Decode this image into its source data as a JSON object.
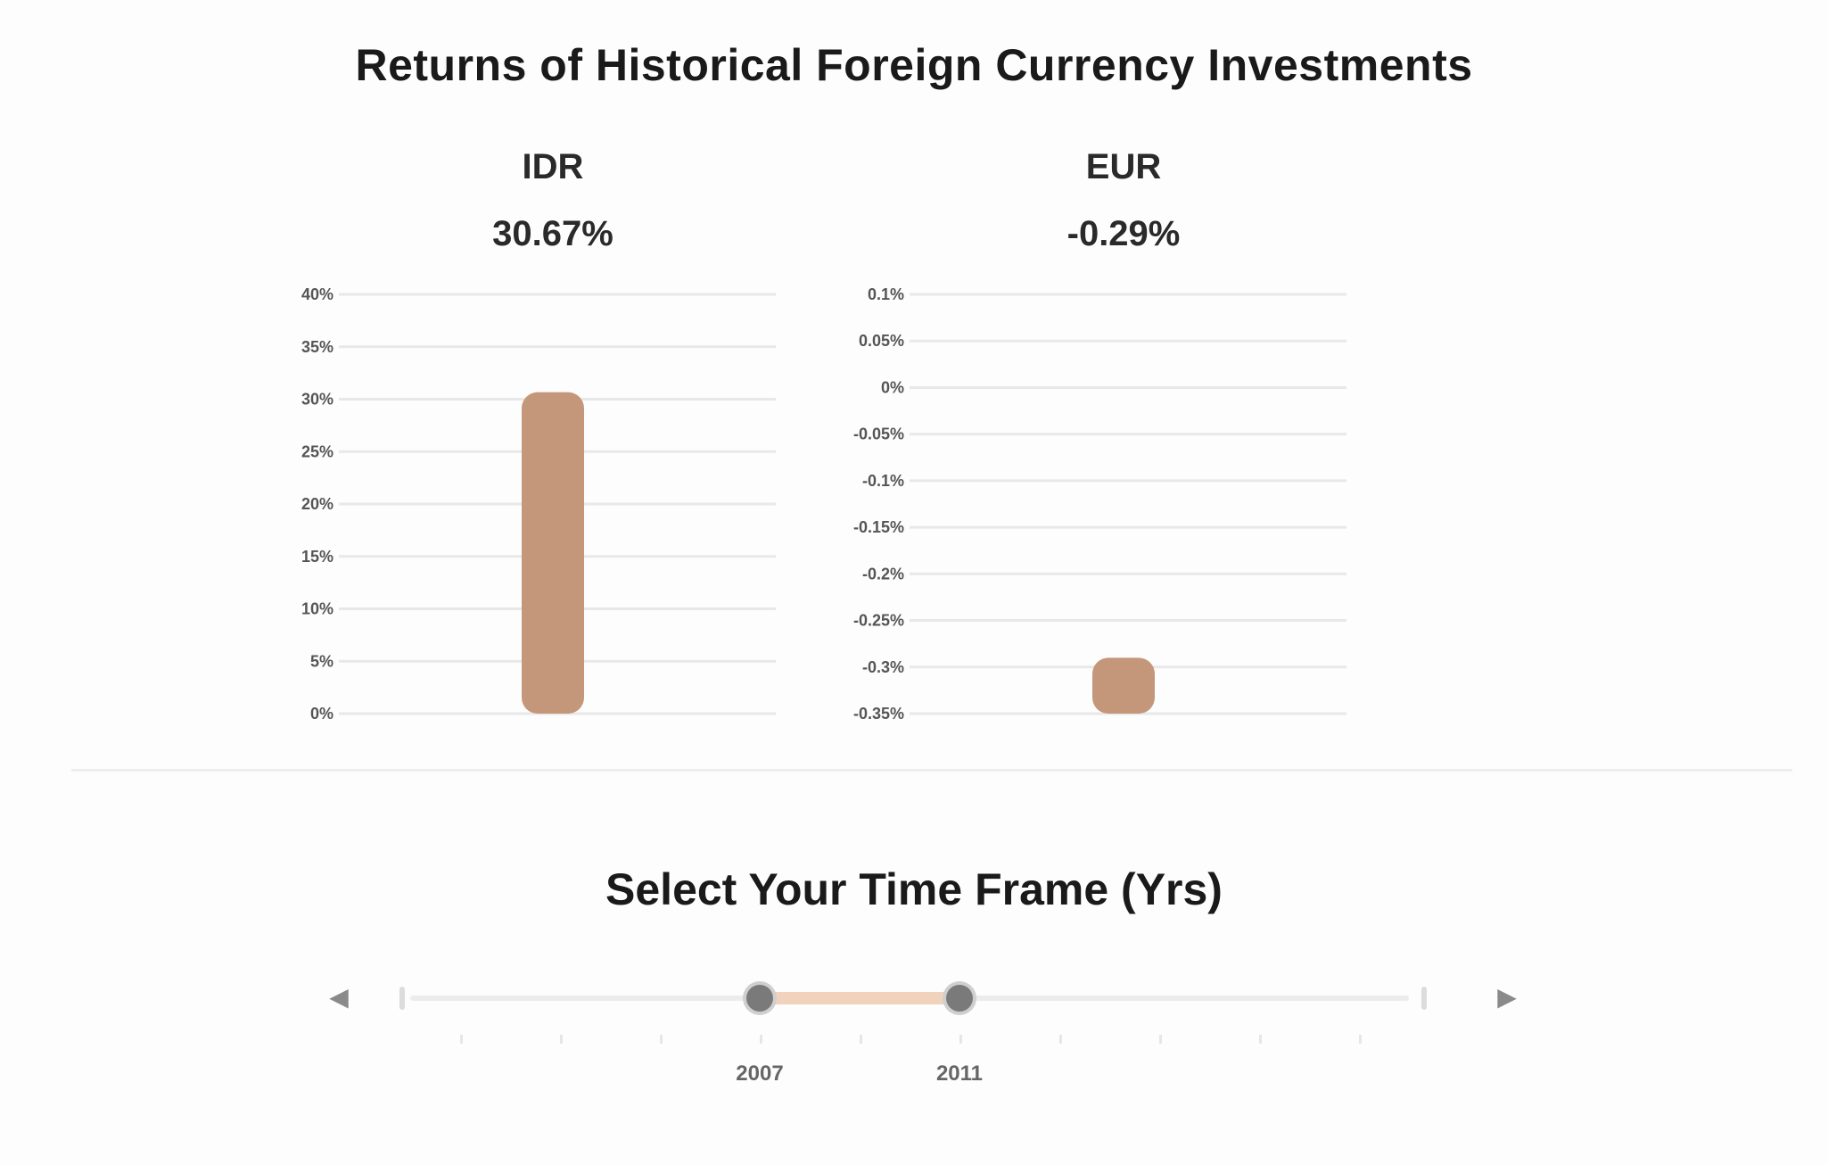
{
  "page": {
    "title": "Returns of Historical Foreign Currency Investments"
  },
  "chart_data": [
    {
      "type": "bar",
      "label": "IDR",
      "value_label": "30.67%",
      "values": [
        30.67
      ],
      "yticks": [
        "0%",
        "5%",
        "10%",
        "15%",
        "20%",
        "25%",
        "30%",
        "35%",
        "40%"
      ],
      "ylim": [
        0,
        40
      ],
      "color": "#c4977a",
      "grid": true
    },
    {
      "type": "bar",
      "label": "EUR",
      "value_label": "-0.29%",
      "values": [
        -0.29
      ],
      "yticks": [
        "-0.35%",
        "-0.3%",
        "-0.25%",
        "-0.2%",
        "-0.15%",
        "-0.1%",
        "-0.05%",
        "0%",
        "0.05%",
        "0.1%"
      ],
      "ylim": [
        -0.35,
        0.1
      ],
      "color": "#c4977a",
      "grid": true
    }
  ],
  "selector": {
    "title": "Select Your Time Frame (Yrs)",
    "prev_arrow": "◀",
    "next_arrow": "▶",
    "min_year": 2000,
    "max_year": 2020,
    "start_year": 2007,
    "end_year": 2011,
    "start_label": "2007",
    "end_label": "2011",
    "range_color": "#f0d2bd"
  }
}
